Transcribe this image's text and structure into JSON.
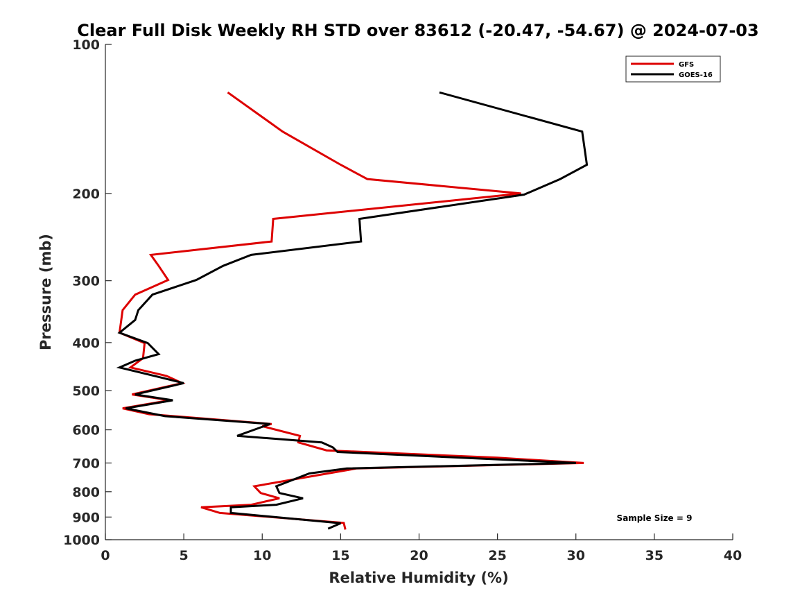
{
  "chart_data": {
    "type": "line",
    "title": "Clear Full Disk Weekly RH STD over 83612 (-20.47, -54.67) @ 2024-07-03",
    "xlabel": "Relative Humidity (%)",
    "ylabel": "Pressure (mb)",
    "xlim": [
      0,
      40
    ],
    "ylim": [
      100,
      1000
    ],
    "y_scale": "log",
    "y_reversed": true,
    "xticks": [
      0,
      5,
      10,
      15,
      20,
      25,
      30,
      35,
      40
    ],
    "yticks": [
      100,
      200,
      300,
      400,
      500,
      600,
      700,
      800,
      900,
      1000
    ],
    "grid": false,
    "legend_position": "top-right",
    "annotation": "Sample Size = 9",
    "series": [
      {
        "name": "GFS",
        "color": "#dd0000",
        "points": [
          [
            7.8,
            125
          ],
          [
            11.3,
            150
          ],
          [
            15.0,
            175
          ],
          [
            16.7,
            187
          ],
          [
            26.5,
            200
          ],
          [
            10.7,
            225
          ],
          [
            10.6,
            250
          ],
          [
            2.9,
            266
          ],
          [
            3.4,
            280
          ],
          [
            4.0,
            299
          ],
          [
            1.9,
            320
          ],
          [
            1.1,
            344
          ],
          [
            0.9,
            382
          ],
          [
            2.5,
            401
          ],
          [
            2.4,
            430
          ],
          [
            1.6,
            449
          ],
          [
            3.9,
            467
          ],
          [
            4.9,
            483
          ],
          [
            1.7,
            509
          ],
          [
            4.1,
            523
          ],
          [
            1.1,
            543
          ],
          [
            2.8,
            558
          ],
          [
            10.6,
            584
          ],
          [
            10.0,
            590
          ],
          [
            12.4,
            617
          ],
          [
            12.3,
            636
          ],
          [
            14.1,
            660
          ],
          [
            25.0,
            683
          ],
          [
            30.5,
            700
          ],
          [
            16.0,
            718
          ],
          [
            9.5,
            780
          ],
          [
            9.9,
            805
          ],
          [
            11.1,
            825
          ],
          [
            9.3,
            850
          ],
          [
            6.1,
            860
          ],
          [
            7.3,
            883
          ],
          [
            15.2,
            925
          ],
          [
            15.3,
            954
          ]
        ]
      },
      {
        "name": "GOES-16",
        "color": "#000000",
        "points": [
          [
            21.3,
            125
          ],
          [
            30.4,
            150
          ],
          [
            30.7,
            175
          ],
          [
            29.0,
            187
          ],
          [
            26.7,
            201
          ],
          [
            16.2,
            225
          ],
          [
            16.3,
            250
          ],
          [
            9.3,
            266
          ],
          [
            7.5,
            280
          ],
          [
            5.8,
            299
          ],
          [
            3.0,
            320
          ],
          [
            2.1,
            344
          ],
          [
            1.9,
            360
          ],
          [
            0.9,
            382
          ],
          [
            2.7,
            401
          ],
          [
            3.4,
            422
          ],
          [
            1.9,
            435
          ],
          [
            0.9,
            449
          ],
          [
            3.5,
            470
          ],
          [
            5.0,
            483
          ],
          [
            1.9,
            509
          ],
          [
            4.3,
            523
          ],
          [
            1.3,
            543
          ],
          [
            3.8,
            563
          ],
          [
            10.5,
            584
          ],
          [
            8.4,
            617
          ],
          [
            13.8,
            636
          ],
          [
            14.5,
            651
          ],
          [
            14.8,
            665
          ],
          [
            30.0,
            700
          ],
          [
            15.4,
            718
          ],
          [
            13.0,
            735
          ],
          [
            10.9,
            780
          ],
          [
            11.1,
            805
          ],
          [
            12.6,
            825
          ],
          [
            10.9,
            850
          ],
          [
            8.0,
            860
          ],
          [
            8.0,
            883
          ],
          [
            15.0,
            926
          ],
          [
            14.2,
            950
          ]
        ]
      }
    ]
  }
}
